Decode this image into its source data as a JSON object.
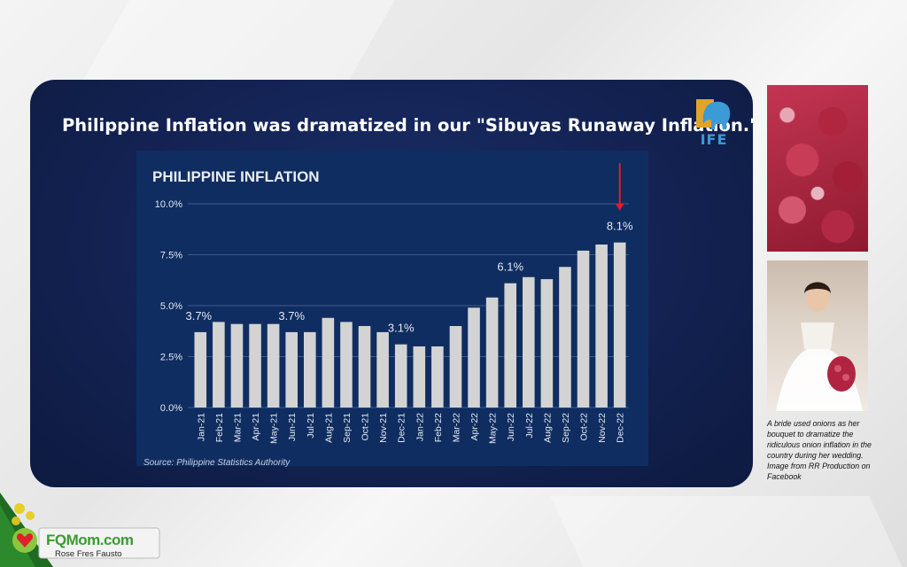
{
  "headline": "Philippine Inflation was dramatized in our \"Sibuyas Runaway Inflation.\"",
  "logo_text": "IFE",
  "source": "Source: Philippine Statistics Authority",
  "caption": "A bride used onions as her bouquet to dramatize the ridiculous onion inflation in the country during her wedding. Image from  RR Production on Facebook",
  "brand": {
    "name": "FQMom.com",
    "sub": "Rose Fres Fausto"
  },
  "colors": {
    "bar": "#d3d3d3",
    "chart_bg": "#0f2d60",
    "arrow": "#d9202a",
    "panel": "#132252"
  },
  "chart_data": {
    "type": "bar",
    "title": "PHILIPPINE INFLATION",
    "xlabel": "",
    "ylabel": "",
    "ylim": [
      0,
      10
    ],
    "y_ticks": [
      "0.0%",
      "2.5%",
      "5.0%",
      "7.5%",
      "10.0%"
    ],
    "grid": true,
    "categories": [
      "Jan-21",
      "Feb-21",
      "Mar-21",
      "Apr-21",
      "May-21",
      "Jun-21",
      "Jul-21",
      "Aug-21",
      "Sep-21",
      "Oct-21",
      "Nov-21",
      "Dec-21",
      "Jan-22",
      "Feb-22",
      "Mar-22",
      "Apr-22",
      "May-22",
      "Jun-22",
      "Jul-22",
      "Aug-22",
      "Sep-22",
      "Oct-22",
      "Nov-22",
      "Dec-22"
    ],
    "values": [
      3.7,
      4.2,
      4.1,
      4.1,
      4.1,
      3.7,
      3.7,
      4.4,
      4.2,
      4.0,
      3.7,
      3.1,
      3.0,
      3.0,
      4.0,
      4.9,
      5.4,
      6.1,
      6.4,
      6.3,
      6.9,
      7.7,
      8.0,
      8.1
    ],
    "annotations": [
      {
        "index": 0,
        "text": "3.7%"
      },
      {
        "index": 5,
        "text": "3.7%"
      },
      {
        "index": 11,
        "text": "3.1%"
      },
      {
        "index": 17,
        "text": "6.1%"
      },
      {
        "index": 23,
        "text": "8.1%"
      }
    ],
    "highlight_arrow_index": 23
  }
}
